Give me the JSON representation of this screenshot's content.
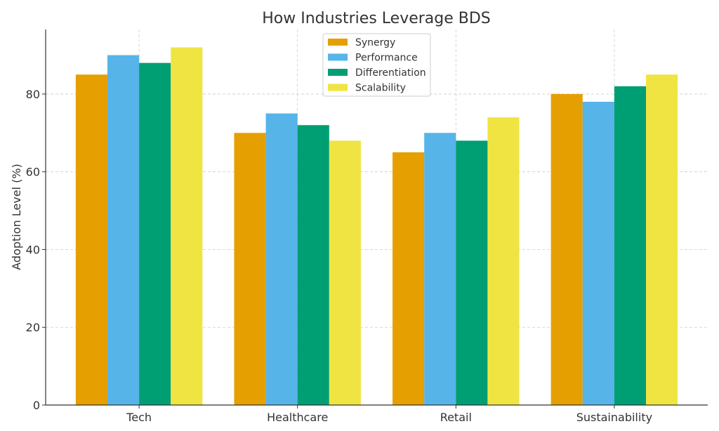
{
  "chart_data": {
    "type": "bar",
    "title": "How Industries Leverage BDS",
    "xlabel": "",
    "ylabel": "Adoption Level (%)",
    "categories": [
      "Tech",
      "Healthcare",
      "Retail",
      "Sustainability"
    ],
    "series": [
      {
        "name": "Synergy",
        "color": "#E69F00",
        "values": [
          85,
          70,
          65,
          80
        ]
      },
      {
        "name": "Performance",
        "color": "#56B4E9",
        "values": [
          90,
          75,
          70,
          78
        ]
      },
      {
        "name": "Differentiation",
        "color": "#009E73",
        "values": [
          88,
          72,
          68,
          82
        ]
      },
      {
        "name": "Scalability",
        "color": "#F0E442",
        "values": [
          92,
          68,
          74,
          85
        ]
      }
    ],
    "ylim": [
      0,
      96.6
    ],
    "yticks": [
      0,
      20,
      40,
      60,
      80
    ],
    "grid": true,
    "legend_position": "top-center"
  }
}
